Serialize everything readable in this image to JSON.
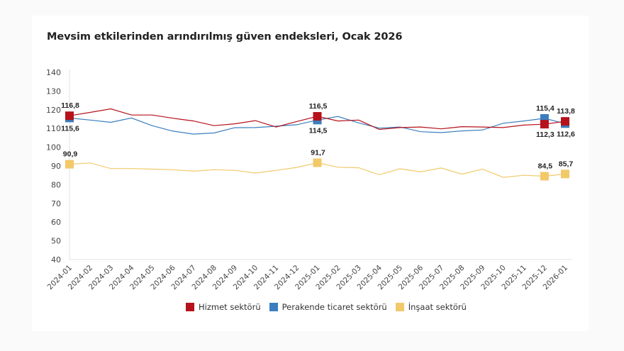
{
  "chart_data": {
    "type": "line",
    "title": "Mevsim etkilerinden arındırılmış güven endeksleri, Ocak 2026",
    "xlabel": "",
    "ylabel": "",
    "ylim": [
      40,
      140
    ],
    "yticks": [
      40,
      50,
      60,
      70,
      80,
      90,
      100,
      110,
      120,
      130,
      140
    ],
    "grid": false,
    "legend_position": "bottom",
    "categories": [
      "2024-01",
      "2024-02",
      "2024-03",
      "2024-04",
      "2024-05",
      "2024-06",
      "2024-07",
      "2024-08",
      "2024-09",
      "2024-10",
      "2024-11",
      "2024-12",
      "2025-01",
      "2025-02",
      "2025-03",
      "2025-04",
      "2025-05",
      "2025-06",
      "2025-07",
      "2025-08",
      "2025-09",
      "2025-10",
      "2025-11",
      "2025-12",
      "2026-01"
    ],
    "series": [
      {
        "name": "Hizmet sektörü",
        "color": "#b5121b",
        "values": [
          116.8,
          118.6,
          120.5,
          117.2,
          117.2,
          115.5,
          114.0,
          111.5,
          112.5,
          114.2,
          110.8,
          113.7,
          116.5,
          114.0,
          114.5,
          109.5,
          110.5,
          110.8,
          109.8,
          111.0,
          110.8,
          110.5,
          111.8,
          112.3,
          113.8
        ],
        "labels": [
          {
            "index": 0,
            "text": "116,8",
            "pos": "above"
          },
          {
            "index": 12,
            "text": "116,5",
            "pos": "above"
          },
          {
            "index": 23,
            "text": "112,3",
            "pos": "below"
          },
          {
            "index": 24,
            "text": "113,8",
            "pos": "above"
          }
        ]
      },
      {
        "name": "Perakende ticaret sektörü",
        "color": "#3a7ebf",
        "values": [
          115.6,
          114.5,
          113.3,
          115.6,
          111.5,
          108.6,
          107.0,
          107.6,
          110.4,
          110.5,
          111.2,
          112.0,
          114.5,
          116.4,
          113.0,
          110.2,
          110.8,
          108.3,
          107.8,
          108.7,
          109.2,
          112.8,
          114.0,
          115.4,
          112.6
        ],
        "labels": [
          {
            "index": 0,
            "text": "115,6",
            "pos": "below"
          },
          {
            "index": 12,
            "text": "114,5",
            "pos": "below"
          },
          {
            "index": 23,
            "text": "115,4",
            "pos": "above"
          },
          {
            "index": 24,
            "text": "112,6",
            "pos": "below"
          }
        ]
      },
      {
        "name": "İnşaat sektörü",
        "color": "#f2c96a",
        "values": [
          90.9,
          91.6,
          88.6,
          88.6,
          88.3,
          88.0,
          87.2,
          88.0,
          87.6,
          86.2,
          87.6,
          89.2,
          91.7,
          89.3,
          89.0,
          85.3,
          88.5,
          86.8,
          88.9,
          85.6,
          88.3,
          83.9,
          85.0,
          84.5,
          85.7
        ],
        "labels": [
          {
            "index": 0,
            "text": "90,9",
            "pos": "above"
          },
          {
            "index": 12,
            "text": "91,7",
            "pos": "above"
          },
          {
            "index": 23,
            "text": "84,5",
            "pos": "above"
          },
          {
            "index": 24,
            "text": "85,7",
            "pos": "above"
          }
        ]
      }
    ],
    "markers_at": [
      0,
      12,
      23,
      24
    ]
  }
}
